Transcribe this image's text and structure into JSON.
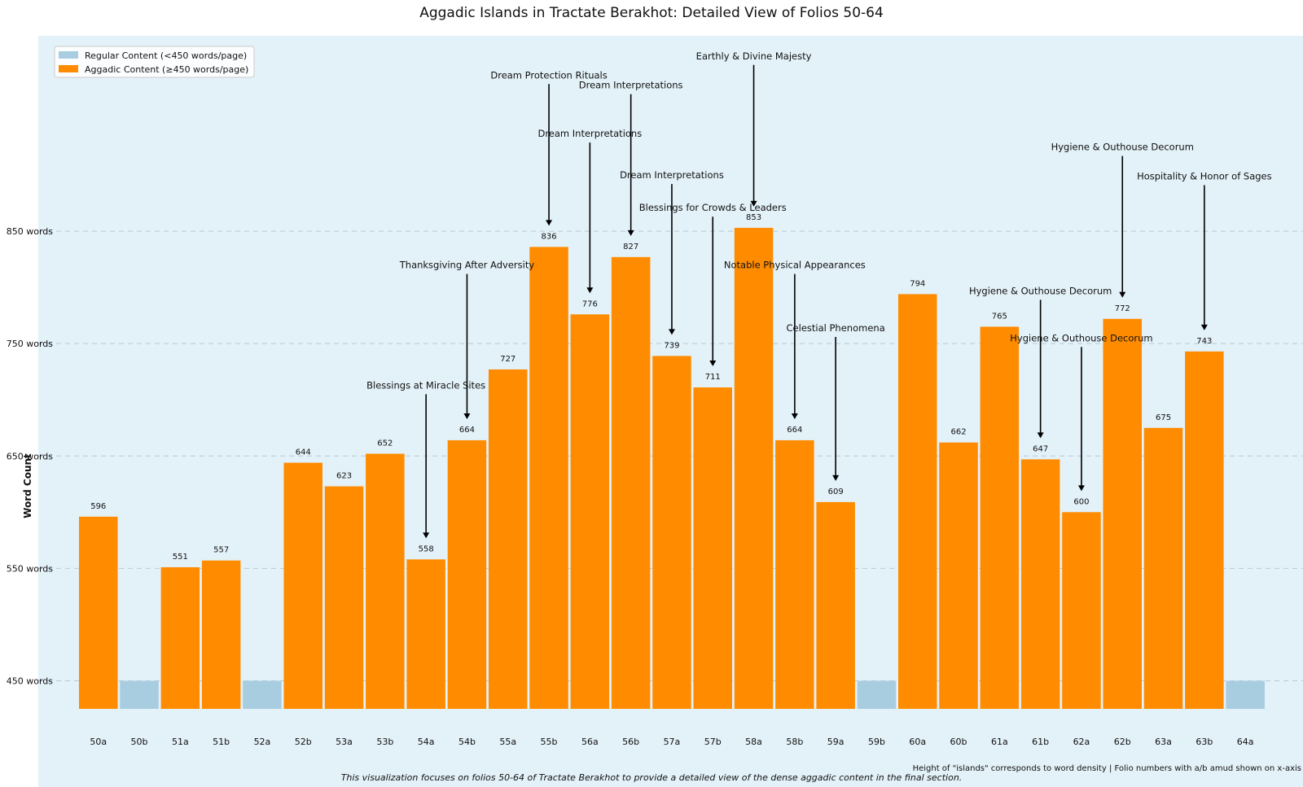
{
  "chart_data": {
    "type": "bar",
    "title": "Aggadic Islands in Tractate Berakhot: Detailed View of Folios 50-64",
    "ylabel": "Word Count",
    "xlabel": "",
    "ylim": [
      425,
      1000
    ],
    "yticks": [
      450,
      550,
      650,
      750,
      850
    ],
    "ytick_suffix": " words",
    "threshold": 450,
    "grid": "horizontal dashed",
    "legend_position": "top-left",
    "legend": [
      {
        "label": "Regular Content (<450 words/page)",
        "color": "#a8cde0"
      },
      {
        "label": "Aggadic Content (≥450 words/page)",
        "color": "#ff8c00"
      }
    ],
    "categories": [
      "50a",
      "50b",
      "51a",
      "51b",
      "52a",
      "52b",
      "53a",
      "53b",
      "54a",
      "54b",
      "55a",
      "55b",
      "56a",
      "56b",
      "57a",
      "57b",
      "58a",
      "58b",
      "59a",
      "59b",
      "60a",
      "60b",
      "61a",
      "61b",
      "62a",
      "62b",
      "63a",
      "63b",
      "64a"
    ],
    "values": [
      596,
      450,
      551,
      557,
      450,
      644,
      623,
      652,
      558,
      664,
      727,
      836,
      776,
      827,
      739,
      711,
      853,
      664,
      609,
      450,
      794,
      662,
      765,
      647,
      600,
      772,
      675,
      743,
      450
    ],
    "value_labels": [
      "596",
      "",
      "551",
      "557",
      "",
      "644",
      "623",
      "652",
      "558",
      "664",
      "727",
      "836",
      "776",
      "827",
      "739",
      "711",
      "853",
      "664",
      "609",
      "",
      "794",
      "662",
      "765",
      "647",
      "600",
      "772",
      "675",
      "743",
      ""
    ],
    "annotations": [
      {
        "folio": "54a",
        "text": "Blessings at Miracle Sites",
        "text_y": 710
      },
      {
        "folio": "54b",
        "text": "Thanksgiving After Adversity",
        "text_y": 817
      },
      {
        "folio": "55b",
        "text": "Dream Protection Rituals",
        "text_y": 986
      },
      {
        "folio": "56a",
        "text": "Dream Interpretations",
        "text_y": 934
      },
      {
        "folio": "56b",
        "text": "Dream Interpretations",
        "text_y": 977
      },
      {
        "folio": "57a",
        "text": "Dream Interpretations",
        "text_y": 897
      },
      {
        "folio": "57b",
        "text": "Blessings for Crowds & Leaders",
        "text_y": 868
      },
      {
        "folio": "58a",
        "text": "Earthly & Divine Majesty",
        "text_y": 1003
      },
      {
        "folio": "58b",
        "text": "Notable Physical Appearances",
        "text_y": 817
      },
      {
        "folio": "59a",
        "text": "Celestial Phenomena",
        "text_y": 761
      },
      {
        "folio": "61b",
        "text": "Hygiene & Outhouse Decorum",
        "text_y": 794
      },
      {
        "folio": "62a",
        "text": "Hygiene & Outhouse Decorum",
        "text_y": 752
      },
      {
        "folio": "62b",
        "text": "Hygiene & Outhouse Decorum",
        "text_y": 922
      },
      {
        "folio": "63b",
        "text": "Hospitality & Honor of Sages",
        "text_y": 896
      }
    ],
    "bottom_note": "Height of \"islands\" corresponds to word density | Folio numbers with a/b amud shown on x-axis",
    "footnote": "This visualization focuses on folios 50-64 of Tractate Berakhot to provide a detailed view of the dense aggadic content in the final section.",
    "colors": {
      "plot_bg": "#e3f1f8",
      "regular": "#a8cde0",
      "aggadic": "#ff8c00",
      "grid": "#b9c9d3"
    }
  }
}
